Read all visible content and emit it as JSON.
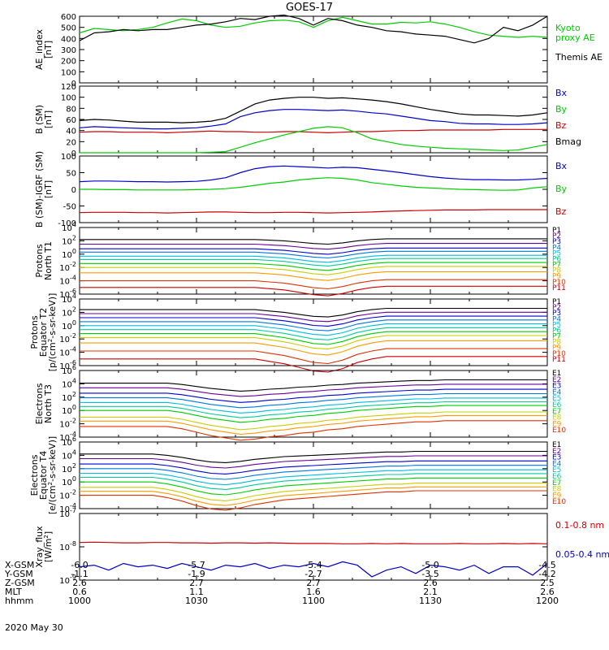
{
  "title": "GOES-17",
  "date_label": "2020 May 30",
  "colors": {
    "black": "#000000",
    "blue": "#0000cc",
    "green": "#00cc00",
    "red": "#cc0000",
    "p": [
      "#000000",
      "#660099",
      "#0000cc",
      "#0077dd",
      "#00bbdd",
      "#00cc99",
      "#00cc00",
      "#cccc00",
      "#ff9900",
      "#dd3300",
      "#cc0000"
    ]
  },
  "x_axis": {
    "hhmm": [
      "1000",
      "1030",
      "1100",
      "1130",
      "1200"
    ],
    "rows": [
      {
        "label": "X-GSM",
        "values": [
          "-6.0",
          "-5.7",
          "-5.4",
          "-5.0",
          "-4.5"
        ]
      },
      {
        "label": "Y-GSM",
        "values": [
          "-1.1",
          "-1.9",
          "-2.7",
          "-3.5",
          "-4.2"
        ]
      },
      {
        "label": "Z-GSM",
        "values": [
          "2.6",
          "2.7",
          "2.7",
          "2.6",
          "2.5"
        ]
      },
      {
        "label": "MLT",
        "values": [
          "0.6",
          "1.1",
          "1.6",
          "2.1",
          "2.6"
        ]
      },
      {
        "label": "hhmm",
        "values": [
          "1000",
          "1030",
          "1100",
          "1130",
          "1200"
        ]
      }
    ]
  },
  "chart_data": [
    {
      "type": "line",
      "ylabel": "AE_index\n[nT]",
      "ylim": [
        0,
        600
      ],
      "yticks": [
        "0",
        "100",
        "200",
        "300",
        "400",
        "500",
        "600"
      ],
      "legend": [
        {
          "name": "Kyoto\nproxy AE",
          "color": "#00cc00"
        },
        {
          "name": "Themis AE",
          "color": "#000000"
        }
      ],
      "series": [
        {
          "name": "Kyoto proxy AE",
          "color": "#00cc00",
          "values": [
            450,
            490,
            480,
            470,
            480,
            500,
            540,
            575,
            560,
            520,
            500,
            510,
            540,
            560,
            565,
            550,
            500,
            560,
            590,
            560,
            530,
            530,
            545,
            540,
            550,
            530,
            500,
            460,
            430,
            420,
            410,
            420,
            410
          ]
        },
        {
          "name": "Themis AE",
          "color": "#000000",
          "values": [
            380,
            450,
            460,
            480,
            470,
            480,
            480,
            500,
            520,
            530,
            550,
            580,
            570,
            600,
            610,
            580,
            520,
            580,
            560,
            520,
            500,
            470,
            460,
            440,
            430,
            420,
            390,
            360,
            400,
            500,
            470,
            520,
            600
          ]
        }
      ]
    },
    {
      "type": "line",
      "ylabel": "B (SM)\n[nT]",
      "ylim": [
        0,
        120
      ],
      "yticks": [
        "0",
        "20",
        "40",
        "60",
        "80",
        "100",
        "120"
      ],
      "legend": [
        {
          "name": "Bx",
          "color": "#0000cc"
        },
        {
          "name": "By",
          "color": "#00cc00"
        },
        {
          "name": "Bz",
          "color": "#cc0000"
        },
        {
          "name": "Bmag",
          "color": "#000000"
        }
      ],
      "series": [
        {
          "name": "Bmag",
          "color": "#000000",
          "values": [
            58,
            60,
            59,
            57,
            55,
            55,
            55,
            54,
            55,
            57,
            62,
            75,
            88,
            95,
            98,
            100,
            100,
            98,
            99,
            97,
            95,
            92,
            88,
            83,
            78,
            74,
            70,
            68,
            68,
            67,
            66,
            68,
            72
          ]
        },
        {
          "name": "Bx",
          "color": "#0000cc",
          "values": [
            45,
            47,
            46,
            45,
            44,
            43,
            43,
            44,
            45,
            48,
            52,
            65,
            72,
            76,
            78,
            78,
            77,
            76,
            77,
            75,
            72,
            70,
            66,
            62,
            58,
            56,
            53,
            52,
            52,
            51,
            51,
            52,
            54
          ]
        },
        {
          "name": "Bz",
          "color": "#cc0000",
          "values": [
            37,
            38,
            38,
            37,
            37,
            37,
            36,
            37,
            38,
            39,
            38,
            38,
            37,
            37,
            38,
            38,
            37,
            36,
            37,
            38,
            38,
            39,
            40,
            40,
            41,
            41,
            41,
            41,
            41,
            42,
            42,
            42,
            42
          ]
        },
        {
          "name": "By",
          "color": "#00cc00",
          "values": [
            0,
            0,
            0,
            0,
            0,
            0,
            0,
            0,
            0,
            1,
            2,
            10,
            18,
            25,
            32,
            38,
            44,
            47,
            45,
            36,
            25,
            20,
            15,
            12,
            10,
            8,
            7,
            6,
            5,
            4,
            5,
            10,
            15
          ]
        }
      ]
    },
    {
      "type": "line",
      "ylabel": "B (SM)-IGRF (SM)\n[nT]",
      "ylim": [
        -100,
        100
      ],
      "yticks": [
        "-100",
        "-50",
        "0",
        "50",
        "100"
      ],
      "legend": [
        {
          "name": "Bx",
          "color": "#0000cc"
        },
        {
          "name": "By",
          "color": "#00cc00"
        },
        {
          "name": "Bz",
          "color": "#cc0000"
        }
      ],
      "series": [
        {
          "name": "Bx",
          "color": "#0000cc",
          "values": [
            23,
            25,
            25,
            24,
            23,
            23,
            22,
            23,
            24,
            28,
            35,
            50,
            62,
            68,
            70,
            68,
            66,
            64,
            66,
            65,
            60,
            55,
            50,
            44,
            38,
            34,
            31,
            29,
            29,
            28,
            28,
            30,
            33
          ]
        },
        {
          "name": "By",
          "color": "#00cc00",
          "values": [
            0,
            0,
            -1,
            -1,
            -2,
            -2,
            -2,
            -2,
            -1,
            0,
            2,
            6,
            12,
            18,
            22,
            28,
            32,
            35,
            33,
            28,
            20,
            15,
            10,
            6,
            4,
            2,
            0,
            -1,
            -2,
            -3,
            -2,
            4,
            8
          ]
        },
        {
          "name": "Bz",
          "color": "#cc0000",
          "values": [
            -70,
            -69,
            -69,
            -69,
            -70,
            -70,
            -71,
            -70,
            -69,
            -68,
            -68,
            -69,
            -70,
            -70,
            -69,
            -69,
            -70,
            -71,
            -70,
            -69,
            -68,
            -66,
            -65,
            -64,
            -63,
            -62,
            -62,
            -62,
            -61,
            -61,
            -61,
            -61,
            -61
          ]
        }
      ]
    },
    {
      "type": "line",
      "ylabel": "Protons\nNorth T1",
      "ylim": [
        -6,
        4
      ],
      "yscale": "log",
      "yticks": [
        "10^4",
        "10^2",
        "10^0",
        "10^-2",
        "10^-4",
        "10^-6"
      ],
      "legend": [
        "P1",
        "P2",
        "P3",
        "P4",
        "P5",
        "P6",
        "P7",
        "P8",
        "P9",
        "P10",
        "P11"
      ],
      "base": [
        2.2,
        1.5,
        0.8,
        0.3,
        -0.3,
        -0.8,
        -1.4,
        -2.0,
        -2.8,
        -4.0,
        -5.0
      ],
      "dip": [
        0,
        0,
        0,
        0,
        0,
        0,
        0,
        0,
        0,
        0,
        0,
        0,
        0,
        -0.1,
        -0.2,
        -0.4,
        -0.6,
        -0.7,
        -0.5,
        -0.2,
        0,
        0.1,
        0.1,
        0.1,
        0.1,
        0.1,
        0.1,
        0.1,
        0.1,
        0.1,
        0.1,
        0.1,
        0.1
      ]
    },
    {
      "type": "line",
      "ylabel": "Protons\nEquator T2\n[p/(cm^2-s-sr-keV)]",
      "ylim": [
        -6,
        4
      ],
      "yscale": "log",
      "yticks": [
        "10^4",
        "10^2",
        "10^0",
        "10^-2",
        "10^-4",
        "10^-6"
      ],
      "legend": [
        "P1",
        "P2",
        "P3",
        "P4",
        "P5",
        "P6",
        "P7",
        "P8",
        "P9",
        "P10",
        "P11"
      ],
      "base": [
        2.4,
        1.8,
        1.2,
        0.6,
        0.0,
        -0.6,
        -1.2,
        -1.8,
        -2.6,
        -3.8,
        -5.0
      ],
      "dip": [
        0,
        0,
        0,
        0,
        0,
        0,
        0,
        0,
        0,
        0,
        0,
        0,
        0,
        -0.2,
        -0.4,
        -0.7,
        -1.0,
        -1.1,
        -0.8,
        -0.3,
        0,
        0.2,
        0.2,
        0.2,
        0.2,
        0.2,
        0.2,
        0.2,
        0.2,
        0.2,
        0.2,
        0.2,
        0.2
      ]
    },
    {
      "type": "line",
      "ylabel": "Electrons\nNorth T3",
      "ylim": [
        -4,
        6
      ],
      "yscale": "log",
      "yticks": [
        "10^6",
        "10^4",
        "10^2",
        "10^0",
        "10^-2",
        "10^-4"
      ],
      "legend": [
        "E1",
        "E2",
        "E3",
        "E4",
        "E5",
        "E6",
        "E7",
        "E8",
        "E9",
        "E10"
      ],
      "base": [
        4.1,
        3.4,
        2.6,
        1.9,
        1.2,
        0.6,
        0.0,
        -1.0,
        -1.6,
        -2.4
      ],
      "dip": [
        0,
        0,
        0,
        0,
        0,
        0,
        0,
        -0.2,
        -0.5,
        -0.8,
        -1.0,
        -1.2,
        -1.1,
        -0.9,
        -0.8,
        -0.6,
        -0.5,
        -0.3,
        -0.2,
        0,
        0.1,
        0.2,
        0.3,
        0.4,
        0.4,
        0.5,
        0.5,
        0.5,
        0.5,
        0.5,
        0.5,
        0.5,
        0.5
      ]
    },
    {
      "type": "line",
      "ylabel": "Electrons\nEquator T4\n[e/(cm^2-s-sr-keV)]",
      "ylim": [
        -4,
        6
      ],
      "yscale": "log",
      "yticks": [
        "10^6",
        "10^4",
        "10^2",
        "10^0",
        "10^-2",
        "10^-4"
      ],
      "legend": [
        "E1",
        "E2",
        "E3",
        "E4",
        "E5",
        "E6",
        "E7",
        "E8",
        "E9",
        "E10"
      ],
      "base": [
        4.2,
        3.5,
        2.7,
        2.0,
        1.3,
        0.7,
        0.0,
        -0.8,
        -1.4,
        -2.0
      ],
      "dip": [
        0,
        0,
        0,
        0,
        0,
        0,
        -0.2,
        -0.5,
        -0.9,
        -1.2,
        -1.3,
        -1.1,
        -0.8,
        -0.6,
        -0.4,
        -0.3,
        -0.2,
        -0.1,
        0,
        0.1,
        0.2,
        0.3,
        0.3,
        0.4,
        0.4,
        0.4,
        0.4,
        0.4,
        0.4,
        0.4,
        0.4,
        0.4,
        0.4
      ]
    },
    {
      "type": "line",
      "ylabel": "Xray_flux\n[W/m^2]",
      "ylim": [
        -9,
        -7
      ],
      "yscale": "log",
      "yticks": [
        "10^-7",
        "10^-8",
        "10^-9"
      ],
      "legend": [
        {
          "name": "0.1-0.8 nm",
          "color": "#cc0000"
        },
        {
          "name": "0.05-0.4 nm",
          "color": "#0000cc"
        }
      ],
      "series": [
        {
          "name": "0.1-0.8 nm",
          "color": "#cc0000",
          "values": [
            -7.87,
            -7.86,
            -7.87,
            -7.88,
            -7.88,
            -7.87,
            -7.87,
            -7.88,
            -7.88,
            -7.89,
            -7.88,
            -7.88,
            -7.89,
            -7.88,
            -7.89,
            -7.9,
            -7.9,
            -7.9,
            -7.91,
            -7.91,
            -7.9,
            -7.91,
            -7.9,
            -7.91,
            -7.91,
            -7.91,
            -7.9,
            -7.91,
            -7.91,
            -7.9,
            -7.91,
            -7.9,
            -7.91
          ]
        },
        {
          "name": "0.05-0.4 nm",
          "color": "#0000cc",
          "values": [
            -8.6,
            -8.55,
            -8.7,
            -8.5,
            -8.6,
            -8.55,
            -8.65,
            -8.5,
            -8.6,
            -8.7,
            -8.55,
            -8.6,
            -8.5,
            -8.65,
            -8.55,
            -8.6,
            -8.5,
            -8.6,
            -8.45,
            -8.55,
            -8.9,
            -8.7,
            -8.6,
            -8.8,
            -8.55,
            -8.6,
            -8.7,
            -8.55,
            -8.8,
            -8.6,
            -8.6,
            -8.85,
            -8.5
          ]
        }
      ]
    }
  ]
}
